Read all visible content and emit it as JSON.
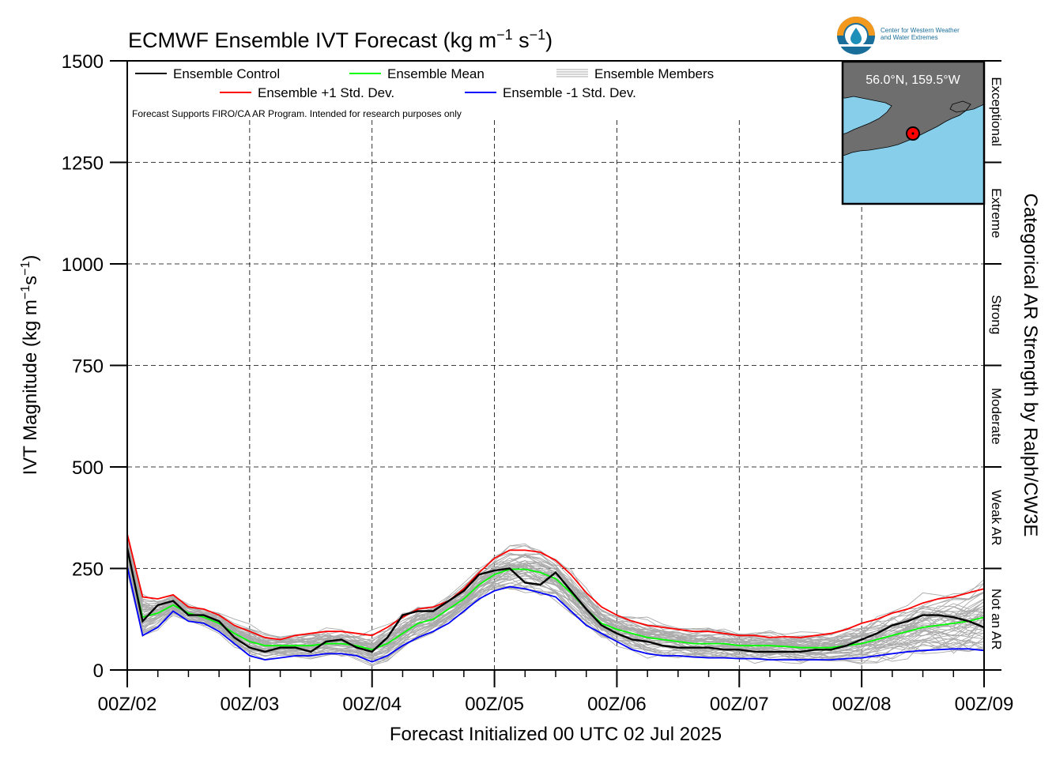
{
  "title_text": "ECMWF Ensemble IVT Forecast (kg m",
  "title_exp1": "−1",
  "title_mid": " s",
  "title_exp2": "−1",
  "title_close": ")",
  "ylabel_text": "IVT Magnitude (kg m",
  "ylabel_exp1": "−1",
  "ylabel_mid": "s",
  "ylabel_exp2": "−1",
  "ylabel_close": ")",
  "xlabel": "Forecast Initialized 00 UTC 02 Jul 2025",
  "right_axis_label": "Categorical AR Strength by Ralph/CW3E",
  "disclaimer": "Forecast Supports FIRO/CA AR Program. Intended for research purposes only",
  "logo": {
    "line1": "Center for Western Weather",
    "line2": "and Water Extremes",
    "colors": {
      "orange": "#F39A1E",
      "blue": "#1A6E9A",
      "teal": "#1E8FB8"
    }
  },
  "inset_map": {
    "location_label": "56.0°N, 159.5°W",
    "ocean_color": "#87CEEB",
    "land_color": "#6E6E6E",
    "marker_color": "#FF0000"
  },
  "categories": [
    {
      "label": "Exceptional",
      "from": 1250,
      "to": 1500
    },
    {
      "label": "Extreme",
      "from": 1000,
      "to": 1250
    },
    {
      "label": "Strong",
      "from": 750,
      "to": 1000
    },
    {
      "label": "Moderate",
      "from": 500,
      "to": 750
    },
    {
      "label": "Weak AR",
      "from": 250,
      "to": 500
    },
    {
      "label": "Not an AR",
      "from": 0,
      "to": 250
    }
  ],
  "legend": [
    {
      "label": "Ensemble Control",
      "color": "#000000",
      "style": "solid"
    },
    {
      "label": "Ensemble Mean",
      "color": "#00FF00",
      "style": "solid"
    },
    {
      "label": "Ensemble Members",
      "color": "#AAAAAA",
      "style": "multi"
    },
    {
      "label": "Ensemble +1 Std. Dev.",
      "color": "#FF0000",
      "style": "solid"
    },
    {
      "label": "Ensemble -1 Std. Dev.",
      "color": "#0000FF",
      "style": "solid"
    }
  ],
  "chart_data": {
    "type": "line",
    "title": "ECMWF Ensemble IVT Forecast (kg m−1 s−1)",
    "xlabel": "Forecast Initialized 00 UTC 02 Jul 2025",
    "ylabel": "IVT Magnitude (kg m−1s−1)",
    "x_unit": "forecast hours since 00Z/02",
    "xlim": [
      0,
      168
    ],
    "ylim": [
      0,
      1500
    ],
    "yticks": [
      0,
      250,
      500,
      750,
      1000,
      1250,
      1500
    ],
    "xticks": [
      {
        "x": 0,
        "label": "00Z/02"
      },
      {
        "x": 24,
        "label": "00Z/03"
      },
      {
        "x": 48,
        "label": "00Z/04"
      },
      {
        "x": 72,
        "label": "00Z/05"
      },
      {
        "x": 96,
        "label": "00Z/06"
      },
      {
        "x": 120,
        "label": "00Z/07"
      },
      {
        "x": 144,
        "label": "00Z/08"
      },
      {
        "x": 168,
        "label": "00Z/09"
      }
    ],
    "x": [
      0,
      3,
      6,
      9,
      12,
      15,
      18,
      21,
      24,
      27,
      30,
      33,
      36,
      39,
      42,
      45,
      48,
      51,
      54,
      57,
      60,
      63,
      66,
      69,
      72,
      75,
      78,
      81,
      84,
      87,
      90,
      93,
      96,
      99,
      102,
      105,
      108,
      111,
      114,
      117,
      120,
      123,
      126,
      129,
      132,
      135,
      138,
      141,
      144,
      147,
      150,
      153,
      156,
      159,
      162,
      165,
      168
    ],
    "grid": true,
    "series": [
      {
        "name": "Ensemble Control",
        "color": "#000000",
        "values": [
          300,
          120,
          160,
          170,
          135,
          135,
          120,
          80,
          55,
          45,
          55,
          55,
          45,
          70,
          75,
          55,
          45,
          80,
          135,
          145,
          145,
          170,
          195,
          235,
          245,
          250,
          215,
          210,
          240,
          195,
          150,
          110,
          90,
          75,
          70,
          60,
          55,
          55,
          55,
          50,
          50,
          45,
          45,
          45,
          45,
          50,
          50,
          60,
          75,
          90,
          110,
          120,
          135,
          135,
          130,
          120,
          105
        ]
      },
      {
        "name": "Ensemble Mean",
        "color": "#00FF00",
        "values": [
          295,
          130,
          140,
          160,
          140,
          130,
          115,
          90,
          70,
          60,
          60,
          60,
          60,
          65,
          65,
          60,
          50,
          65,
          90,
          115,
          125,
          150,
          175,
          210,
          235,
          248,
          248,
          240,
          225,
          190,
          150,
          115,
          100,
          90,
          80,
          75,
          70,
          65,
          65,
          65,
          60,
          60,
          60,
          58,
          55,
          55,
          55,
          60,
          65,
          75,
          85,
          95,
          105,
          110,
          115,
          120,
          130
        ]
      },
      {
        "name": "Ensemble +1 Std. Dev.",
        "color": "#FF0000",
        "values": [
          335,
          180,
          175,
          185,
          155,
          150,
          135,
          110,
          95,
          80,
          75,
          85,
          90,
          95,
          95,
          90,
          85,
          105,
          130,
          150,
          155,
          170,
          200,
          240,
          275,
          295,
          295,
          290,
          270,
          235,
          190,
          155,
          135,
          120,
          110,
          105,
          100,
          95,
          95,
          90,
          85,
          85,
          80,
          82,
          80,
          85,
          90,
          100,
          115,
          125,
          140,
          150,
          165,
          175,
          180,
          190,
          200
        ]
      },
      {
        "name": "Ensemble -1 Std. Dev.",
        "color": "#0000FF",
        "values": [
          255,
          85,
          105,
          145,
          120,
          115,
          95,
          65,
          35,
          25,
          30,
          35,
          35,
          40,
          40,
          35,
          20,
          35,
          60,
          80,
          95,
          115,
          145,
          175,
          195,
          205,
          200,
          190,
          180,
          145,
          110,
          90,
          70,
          50,
          40,
          35,
          35,
          32,
          30,
          30,
          28,
          28,
          25,
          25,
          25,
          25,
          25,
          28,
          30,
          35,
          40,
          45,
          48,
          50,
          52,
          52,
          48
        ]
      }
    ],
    "members": {
      "name": "Ensemble Members",
      "count": 50,
      "color": "#AAAAAA",
      "range_min_max": [
        0,
        370
      ]
    }
  }
}
